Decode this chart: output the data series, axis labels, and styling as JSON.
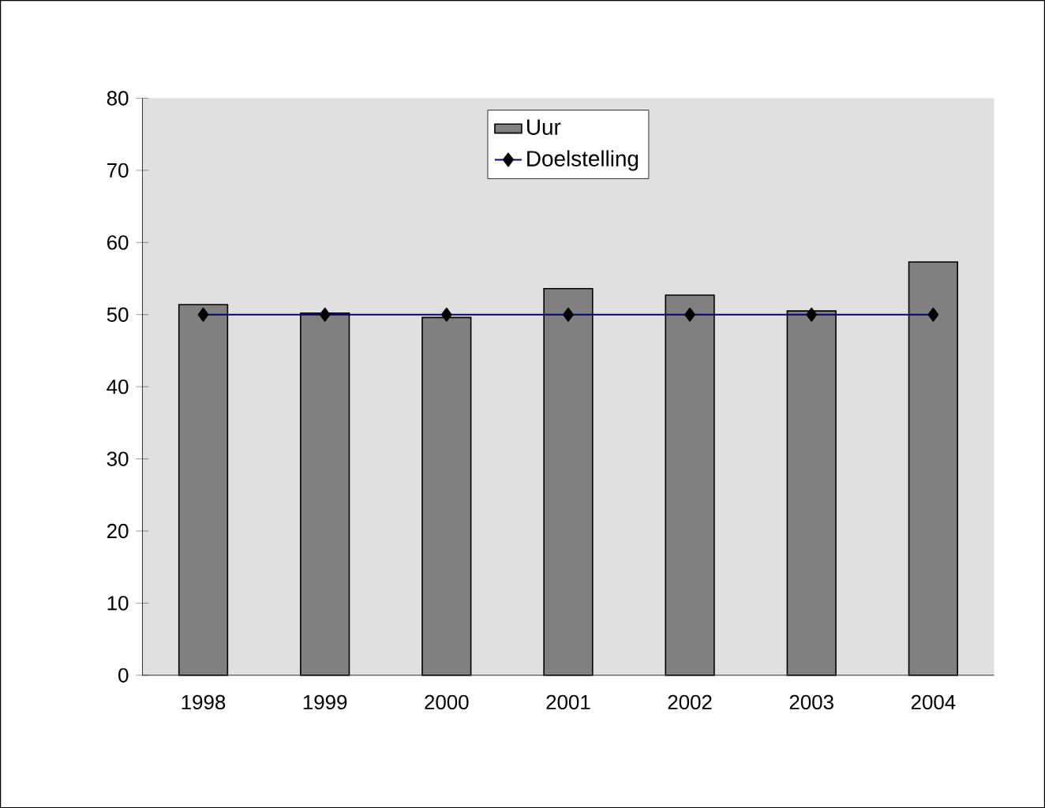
{
  "chart_data": {
    "type": "bar",
    "categories": [
      "1998",
      "1999",
      "2000",
      "2001",
      "2002",
      "2003",
      "2004"
    ],
    "series": [
      {
        "name": "Uur",
        "color": "#808080",
        "values": [
          51.4,
          50.2,
          49.6,
          53.6,
          52.7,
          50.5,
          57.3
        ]
      },
      {
        "name": "Doelstelling",
        "type": "line",
        "color": "#000080",
        "marker": "diamond",
        "values": [
          50,
          50,
          50,
          50,
          50,
          50,
          50
        ]
      }
    ],
    "ylim": [
      0,
      80
    ],
    "yticks": [
      0,
      10,
      20,
      30,
      40,
      50,
      60,
      70,
      80
    ],
    "legend": "top",
    "grid": false
  }
}
